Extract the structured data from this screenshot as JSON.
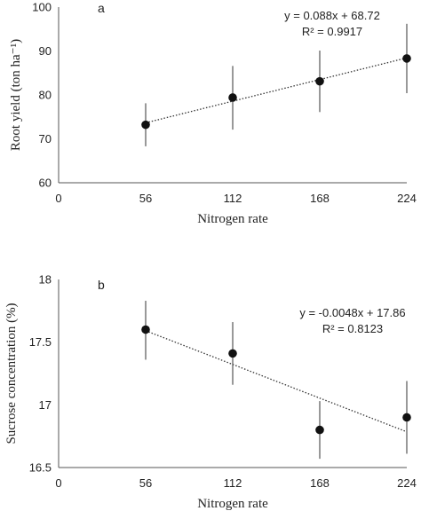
{
  "chart_data": [
    {
      "type": "scatter",
      "panel_label": "a",
      "x": [
        56,
        112,
        168,
        224
      ],
      "y": [
        73.2,
        79.4,
        83.1,
        88.3
      ],
      "y_err_low": [
        68.3,
        72.1,
        76.1,
        80.4
      ],
      "y_err_high": [
        78.1,
        86.6,
        90.1,
        96.2
      ],
      "xticks": [
        "0",
        "56",
        "112",
        "168",
        "224"
      ],
      "yticks": [
        "60",
        "70",
        "80",
        "90",
        "100"
      ],
      "xlim": [
        0,
        224
      ],
      "ylim": [
        60,
        100
      ],
      "xlabel": "Nitrogen rate",
      "ylabel": "Root yield (ton ha⁻¹)",
      "trendline": {
        "slope": 0.088,
        "intercept": 68.72,
        "style": "dotted"
      },
      "equation": "y = 0.088x + 68.72",
      "r2": "R² = 0.9917",
      "grid": false,
      "marker_color": "#111111"
    },
    {
      "type": "scatter",
      "panel_label": "b",
      "x": [
        56,
        112,
        168,
        224
      ],
      "y": [
        17.6,
        17.41,
        16.8,
        16.9
      ],
      "y_err_low": [
        17.36,
        17.16,
        16.57,
        16.61
      ],
      "y_err_high": [
        17.83,
        17.66,
        17.03,
        17.19
      ],
      "xticks": [
        "0",
        "56",
        "112",
        "168",
        "224"
      ],
      "yticks": [
        "16.5",
        "17",
        "17.5",
        "18"
      ],
      "xlim": [
        0,
        224
      ],
      "ylim": [
        16.5,
        18
      ],
      "xlabel": "Nitrogen rate",
      "ylabel": "Sucrose concentration (%)",
      "trendline": {
        "slope": -0.0048,
        "intercept": 17.86,
        "style": "dotted"
      },
      "equation": "y = -0.0048x + 17.86",
      "r2": "R² = 0.8123",
      "grid": false,
      "marker_color": "#111111"
    }
  ]
}
